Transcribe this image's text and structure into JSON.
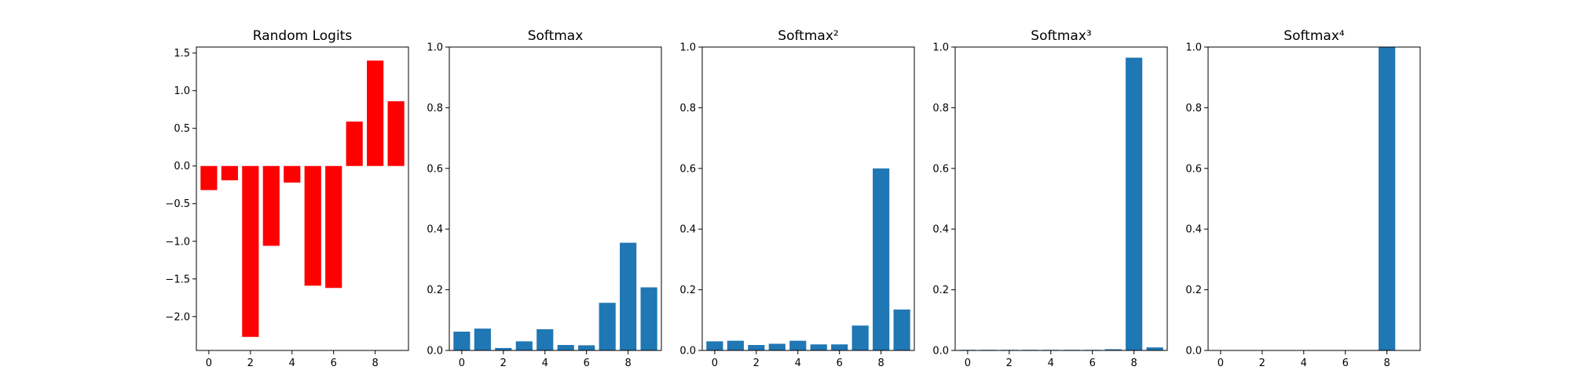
{
  "chart_data": [
    {
      "type": "bar",
      "title": "Random Logits",
      "x": [
        0,
        1,
        2,
        3,
        4,
        5,
        6,
        7,
        8,
        9
      ],
      "values": [
        -0.32,
        -0.19,
        -2.27,
        -1.06,
        -0.22,
        -1.59,
        -1.62,
        0.59,
        1.4,
        0.86
      ],
      "color": "#ff0000",
      "ylim": [
        -2.45,
        1.58
      ],
      "yticks": [
        -2.0,
        -1.5,
        -1.0,
        -0.5,
        0.0,
        0.5,
        1.0,
        1.5
      ],
      "ytick_labels": [
        "−2.0",
        "−1.5",
        "−1.0",
        "−0.5",
        "0.0",
        "0.5",
        "1.0",
        "1.5"
      ],
      "xticks": [
        0,
        2,
        4,
        6,
        8
      ],
      "xtick_labels": [
        "0",
        "2",
        "4",
        "6",
        "8"
      ],
      "xlim": [
        -0.6,
        9.6
      ]
    },
    {
      "type": "bar",
      "title": "Softmax",
      "x": [
        0,
        1,
        2,
        3,
        4,
        5,
        6,
        7,
        8,
        9
      ],
      "values": [
        0.062,
        0.072,
        0.008,
        0.03,
        0.07,
        0.018,
        0.017,
        0.157,
        0.355,
        0.208
      ],
      "color": "#1f77b4",
      "ylim": [
        0,
        1.0
      ],
      "yticks": [
        0,
        0.2,
        0.4,
        0.6,
        0.8,
        1.0
      ],
      "ytick_labels": [
        "0.0",
        "0.2",
        "0.4",
        "0.6",
        "0.8",
        "1.0"
      ],
      "xticks": [
        0,
        2,
        4,
        6,
        8
      ],
      "xtick_labels": [
        "0",
        "2",
        "4",
        "6",
        "8"
      ],
      "xlim": [
        -0.6,
        9.6
      ]
    },
    {
      "type": "bar",
      "title": "Softmax²",
      "x": [
        0,
        1,
        2,
        3,
        4,
        5,
        6,
        7,
        8,
        9
      ],
      "values": [
        0.03,
        0.032,
        0.018,
        0.022,
        0.032,
        0.02,
        0.02,
        0.082,
        0.6,
        0.135
      ],
      "color": "#1f77b4",
      "ylim": [
        0,
        1.0
      ],
      "yticks": [
        0,
        0.2,
        0.4,
        0.6,
        0.8,
        1.0
      ],
      "ytick_labels": [
        "0.0",
        "0.2",
        "0.4",
        "0.6",
        "0.8",
        "1.0"
      ],
      "xticks": [
        0,
        2,
        4,
        6,
        8
      ],
      "xtick_labels": [
        "0",
        "2",
        "4",
        "6",
        "8"
      ],
      "xlim": [
        -0.6,
        9.6
      ]
    },
    {
      "type": "bar",
      "title": "Softmax³",
      "x": [
        0,
        1,
        2,
        3,
        4,
        5,
        6,
        7,
        8,
        9
      ],
      "values": [
        0.002,
        0.002,
        0.002,
        0.002,
        0.002,
        0.002,
        0.002,
        0.004,
        0.965,
        0.01
      ],
      "color": "#1f77b4",
      "ylim": [
        0,
        1.0
      ],
      "yticks": [
        0,
        0.2,
        0.4,
        0.6,
        0.8,
        1.0
      ],
      "ytick_labels": [
        "0.0",
        "0.2",
        "0.4",
        "0.6",
        "0.8",
        "1.0"
      ],
      "xticks": [
        0,
        2,
        4,
        6,
        8
      ],
      "xtick_labels": [
        "0",
        "2",
        "4",
        "6",
        "8"
      ],
      "xlim": [
        -0.6,
        9.6
      ]
    },
    {
      "type": "bar",
      "title": "Softmax⁴",
      "x": [
        0,
        1,
        2,
        3,
        4,
        5,
        6,
        7,
        8,
        9
      ],
      "values": [
        0,
        0,
        0,
        0,
        0,
        0,
        0,
        0,
        1.0,
        0
      ],
      "color": "#1f77b4",
      "ylim": [
        0,
        1.0
      ],
      "yticks": [
        0,
        0.2,
        0.4,
        0.6,
        0.8,
        1.0
      ],
      "ytick_labels": [
        "0.0",
        "0.2",
        "0.4",
        "0.6",
        "0.8",
        "1.0"
      ],
      "xticks": [
        0,
        2,
        4,
        6,
        8
      ],
      "xtick_labels": [
        "0",
        "2",
        "4",
        "6",
        "8"
      ],
      "xlim": [
        -0.6,
        9.6
      ]
    }
  ]
}
